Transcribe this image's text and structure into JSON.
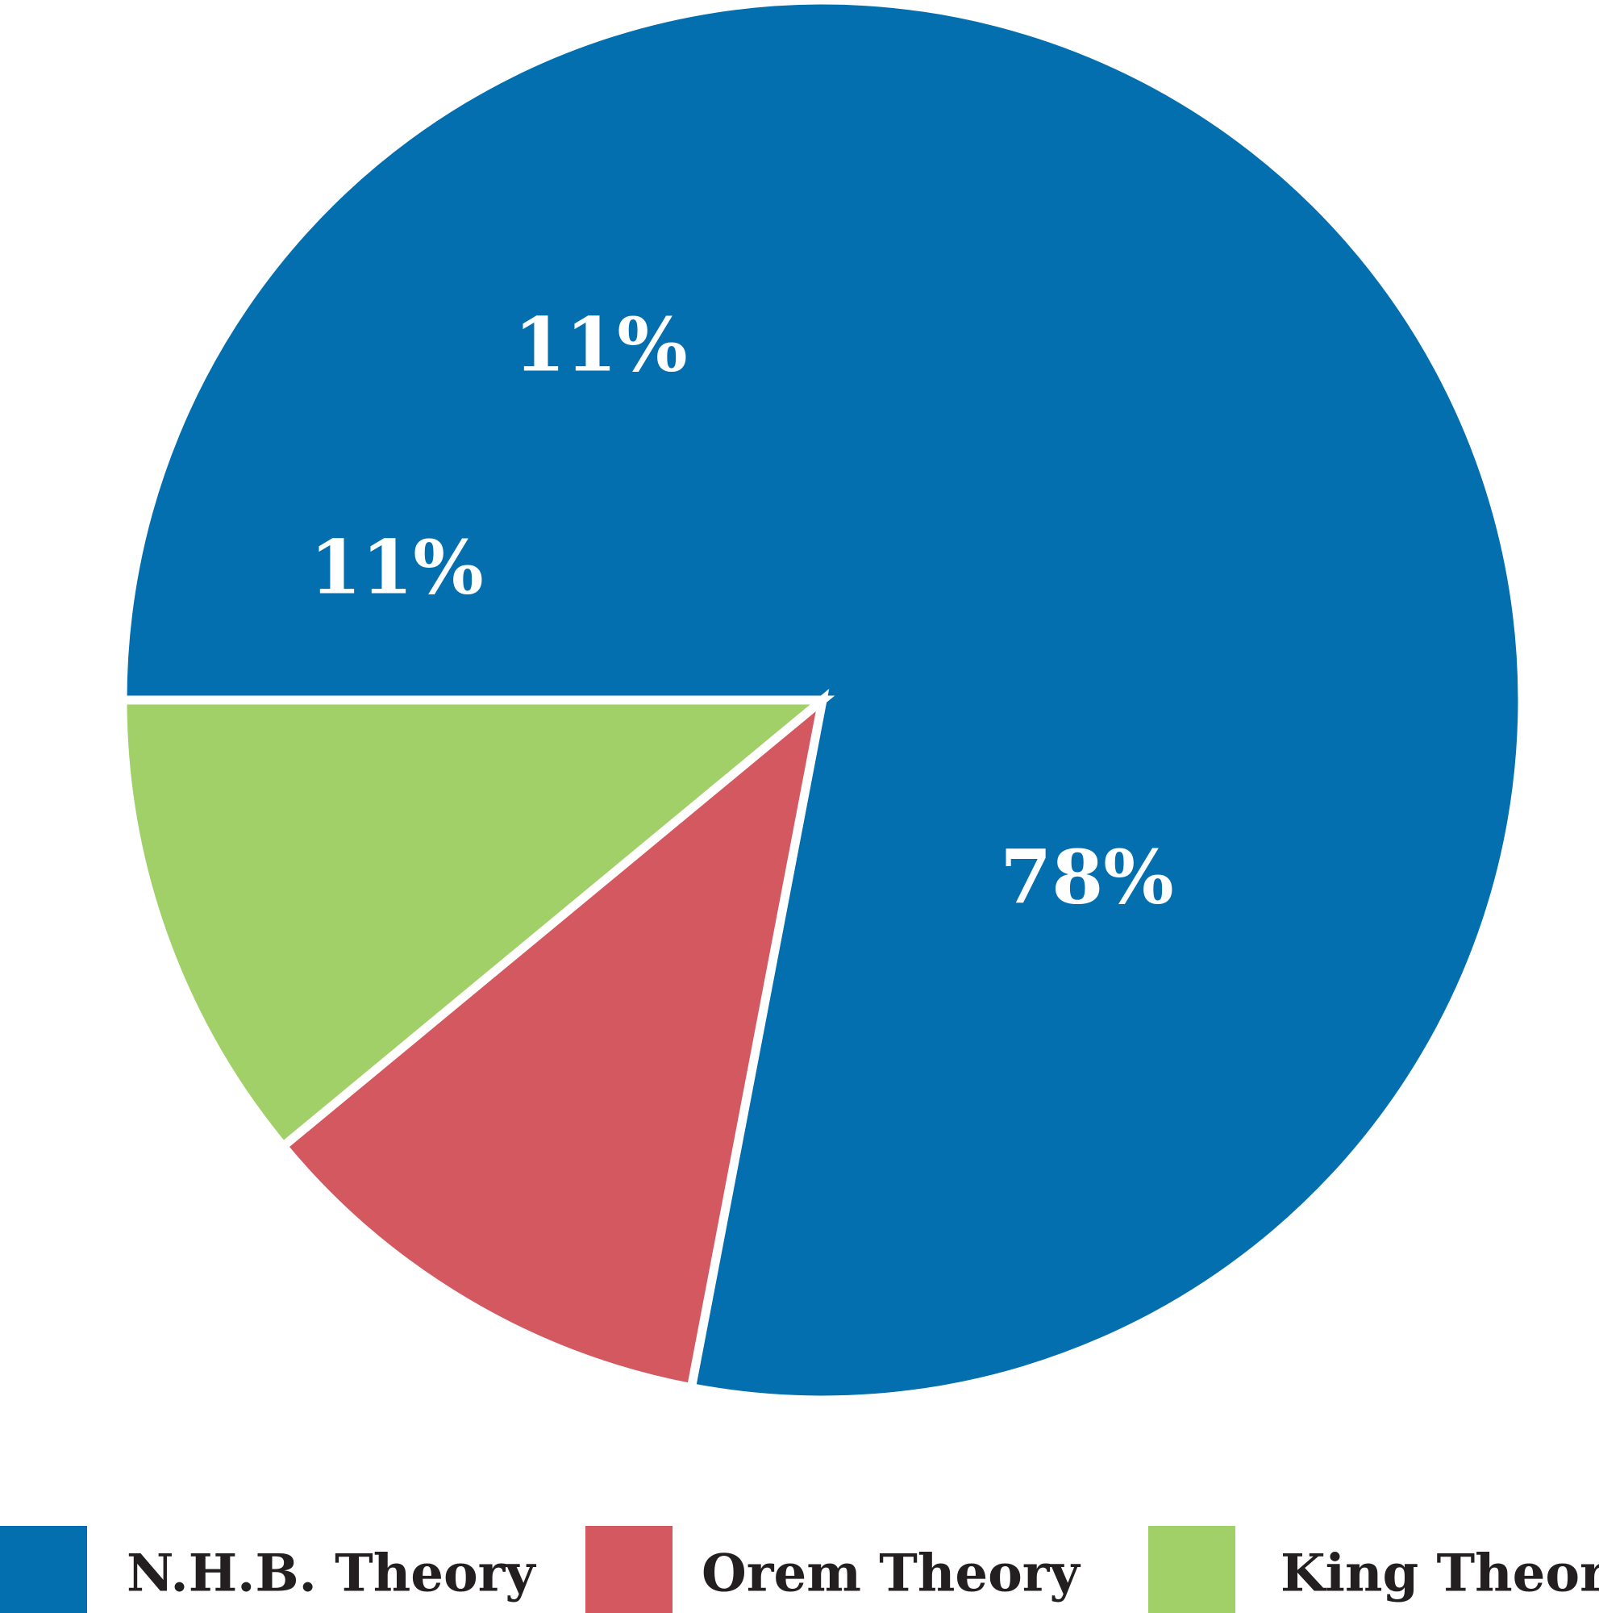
{
  "chart_data": {
    "type": "pie",
    "title": "",
    "slices": [
      {
        "name": "N.H.B. Theory",
        "value": 78,
        "label": "78%",
        "color": "#036fae"
      },
      {
        "name": "Orem Theory",
        "value": 11,
        "label": "11%",
        "color": "#d45860"
      },
      {
        "name": "King Theory",
        "value": 11,
        "label": "11%",
        "color": "#a1d068"
      }
    ],
    "start_angle_deg": 180,
    "direction": "clockwise",
    "legend_position": "bottom"
  },
  "legend": {
    "items": [
      {
        "label": "N.H.B. Theory",
        "color": "#036fae"
      },
      {
        "label": "Orem Theory",
        "color": "#d45860"
      },
      {
        "label": "King Theory",
        "color": "#a1d068"
      }
    ]
  }
}
